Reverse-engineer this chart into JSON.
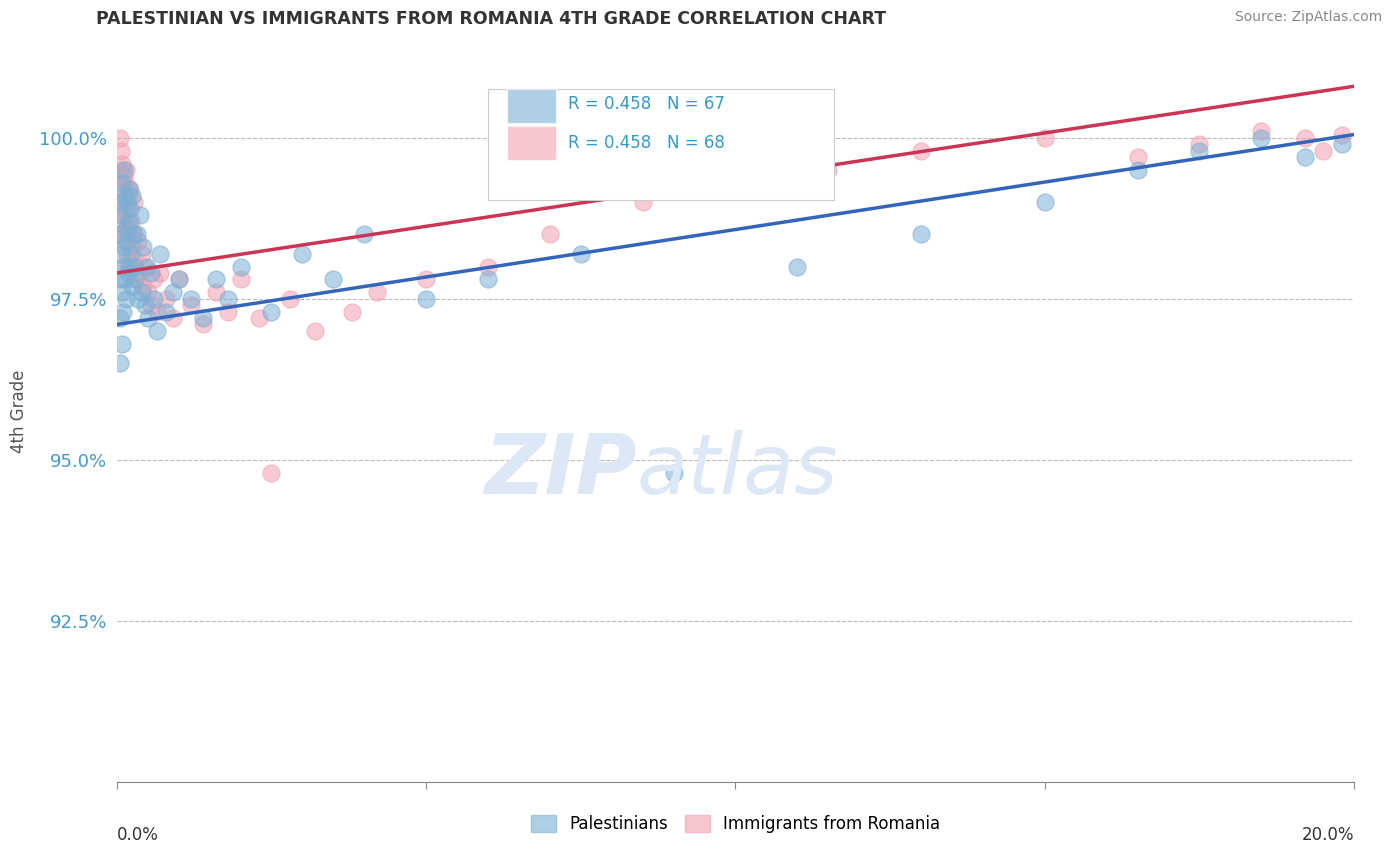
{
  "title": "PALESTINIAN VS IMMIGRANTS FROM ROMANIA 4TH GRADE CORRELATION CHART",
  "source": "Source: ZipAtlas.com",
  "ylabel": "4th Grade",
  "xlim": [
    0.0,
    20.0
  ],
  "ylim": [
    90.0,
    101.5
  ],
  "yticks": [
    92.5,
    95.0,
    97.5,
    100.0
  ],
  "ytick_labels": [
    "92.5%",
    "95.0%",
    "97.5%",
    "100.0%"
  ],
  "blue_R": 0.458,
  "blue_N": 67,
  "pink_R": 0.458,
  "pink_N": 68,
  "blue_color": "#7bafd4",
  "pink_color": "#f4a0b0",
  "blue_line_color": "#3366bb",
  "pink_line_color": "#cc3355",
  "legend_label_blue": "Palestinians",
  "legend_label_pink": "Immigrants from Romania",
  "blue_line_x0": 0.0,
  "blue_line_y0": 97.1,
  "blue_line_x1": 20.0,
  "blue_line_y1": 100.05,
  "pink_line_x0": 0.0,
  "pink_line_y0": 97.9,
  "pink_line_x1": 20.0,
  "pink_line_y1": 100.8,
  "blue_x": [
    0.05,
    0.05,
    0.05,
    0.05,
    0.07,
    0.07,
    0.08,
    0.08,
    0.09,
    0.1,
    0.1,
    0.1,
    0.12,
    0.12,
    0.13,
    0.14,
    0.15,
    0.15,
    0.16,
    0.17,
    0.18,
    0.19,
    0.2,
    0.2,
    0.22,
    0.23,
    0.24,
    0.25,
    0.26,
    0.28,
    0.3,
    0.32,
    0.35,
    0.38,
    0.4,
    0.42,
    0.45,
    0.48,
    0.5,
    0.55,
    0.6,
    0.65,
    0.7,
    0.8,
    0.9,
    1.0,
    1.2,
    1.4,
    1.6,
    1.8,
    2.0,
    2.5,
    3.0,
    3.5,
    4.0,
    5.0,
    6.0,
    7.5,
    9.0,
    11.0,
    13.0,
    15.0,
    16.5,
    17.5,
    18.5,
    19.2,
    19.8
  ],
  "blue_y": [
    98.5,
    97.8,
    97.2,
    96.5,
    99.0,
    98.2,
    97.6,
    96.8,
    99.3,
    98.8,
    98.0,
    97.3,
    99.5,
    98.3,
    97.8,
    99.1,
    98.6,
    97.5,
    99.0,
    98.4,
    97.9,
    99.2,
    98.7,
    98.0,
    98.9,
    98.2,
    97.7,
    99.1,
    98.5,
    98.0,
    97.8,
    98.5,
    97.5,
    98.8,
    97.6,
    98.3,
    97.4,
    98.0,
    97.2,
    97.9,
    97.5,
    97.0,
    98.2,
    97.3,
    97.6,
    97.8,
    97.5,
    97.2,
    97.8,
    97.5,
    98.0,
    97.3,
    98.2,
    97.8,
    98.5,
    97.5,
    97.8,
    98.2,
    94.8,
    98.0,
    98.5,
    99.0,
    99.5,
    99.8,
    100.0,
    99.7,
    99.9
  ],
  "pink_x": [
    0.05,
    0.05,
    0.05,
    0.06,
    0.07,
    0.08,
    0.08,
    0.09,
    0.1,
    0.1,
    0.1,
    0.11,
    0.12,
    0.13,
    0.14,
    0.15,
    0.15,
    0.16,
    0.17,
    0.18,
    0.19,
    0.2,
    0.21,
    0.22,
    0.23,
    0.25,
    0.27,
    0.28,
    0.3,
    0.32,
    0.35,
    0.38,
    0.4,
    0.43,
    0.46,
    0.5,
    0.55,
    0.6,
    0.65,
    0.7,
    0.8,
    0.9,
    1.0,
    1.2,
    1.4,
    1.6,
    1.8,
    2.0,
    2.3,
    2.8,
    3.2,
    3.8,
    4.2,
    5.0,
    6.0,
    7.0,
    8.5,
    10.0,
    11.5,
    13.0,
    15.0,
    16.5,
    17.5,
    18.5,
    19.2,
    19.5,
    19.8,
    2.5
  ],
  "pink_y": [
    100.0,
    99.5,
    98.8,
    99.8,
    99.3,
    98.5,
    99.0,
    99.6,
    99.2,
    98.6,
    98.0,
    99.4,
    98.8,
    99.3,
    98.4,
    98.9,
    99.5,
    98.2,
    99.0,
    98.5,
    99.1,
    98.6,
    98.0,
    99.2,
    98.7,
    98.3,
    99.0,
    98.5,
    98.1,
    97.8,
    98.4,
    97.9,
    98.2,
    97.7,
    98.0,
    97.6,
    97.4,
    97.8,
    97.3,
    97.9,
    97.5,
    97.2,
    97.8,
    97.4,
    97.1,
    97.6,
    97.3,
    97.8,
    97.2,
    97.5,
    97.0,
    97.3,
    97.6,
    97.8,
    98.0,
    98.5,
    99.0,
    99.3,
    99.5,
    99.8,
    100.0,
    99.7,
    99.9,
    100.1,
    100.0,
    99.8,
    100.05,
    94.8
  ]
}
